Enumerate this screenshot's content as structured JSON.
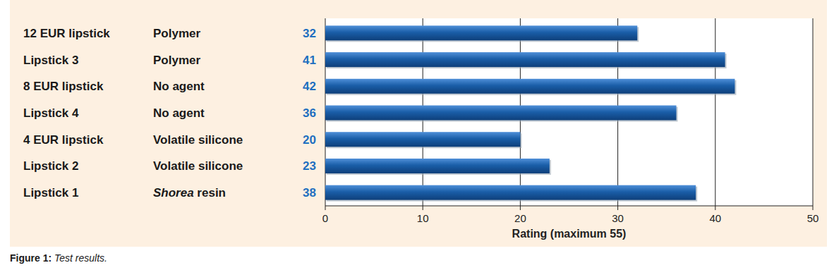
{
  "chart_data": {
    "type": "bar",
    "orientation": "horizontal",
    "categories": [
      "12 EUR lipstick",
      "Lipstick 3",
      "8 EUR lipstick",
      "Lipstick 4",
      "4 EUR lipstick",
      "Lipstick 2",
      "Lipstick 1"
    ],
    "agents": [
      "Polymer",
      "Polymer",
      "No agent",
      "No agent",
      "Volatile silicone",
      "Volatile silicone",
      "Shorea resin"
    ],
    "values": [
      32,
      41,
      42,
      36,
      20,
      23,
      38
    ],
    "color": "#1a5ea8",
    "xlim": [
      0,
      50
    ],
    "xticks": [
      0,
      10,
      20,
      30,
      40,
      50
    ],
    "x_label": "Rating (maximum 55)",
    "caption": "Figure 1: Test results.",
    "grid": true,
    "data_labels": true
  }
}
